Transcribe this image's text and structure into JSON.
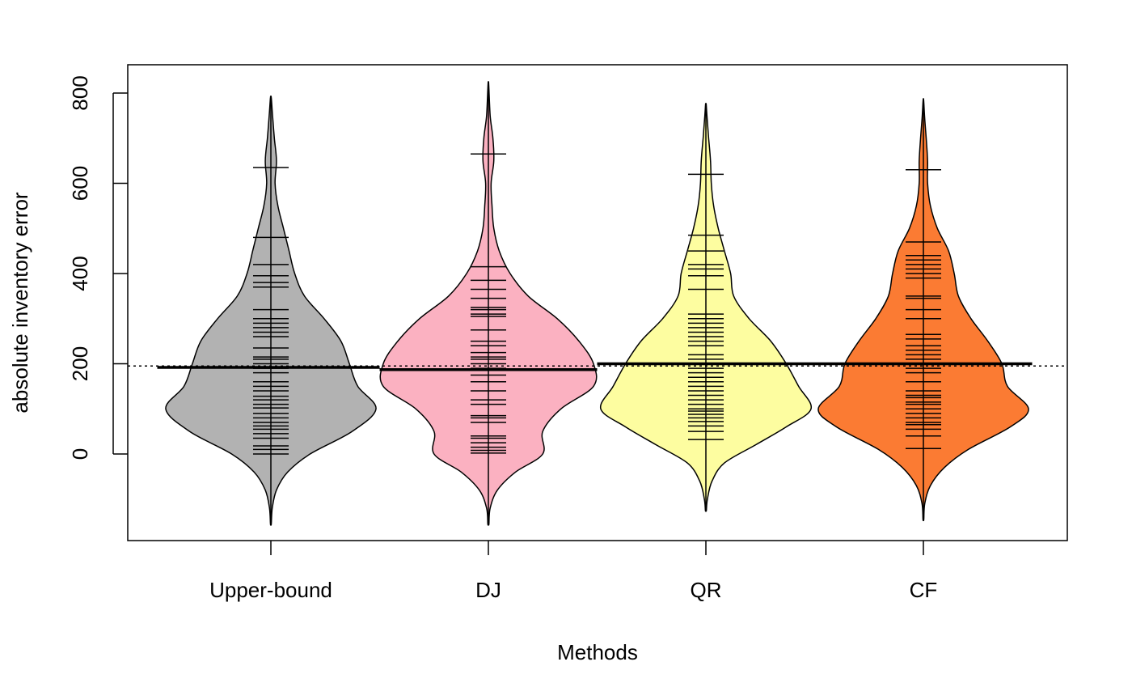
{
  "chart_data": {
    "type": "violin",
    "xlabel": "Methods",
    "ylabel": "absolute inventory error",
    "ylim": [
      -190,
      1000
    ],
    "yticks": [
      0,
      200,
      400,
      600,
      800
    ],
    "overall_mean": 195,
    "grid": false,
    "legend": "none",
    "groups": [
      {
        "name": "Upper-bound",
        "color": "#b2b2b2",
        "mean": 192,
        "range": [
          -155,
          790
        ],
        "density": [
          [
            -155,
            0.003
          ],
          [
            -120,
            0.01
          ],
          [
            -80,
            0.04
          ],
          [
            -40,
            0.12
          ],
          [
            0,
            0.28
          ],
          [
            50,
            0.58
          ],
          [
            100,
            0.75
          ],
          [
            150,
            0.62
          ],
          [
            200,
            0.56
          ],
          [
            250,
            0.5
          ],
          [
            300,
            0.38
          ],
          [
            350,
            0.24
          ],
          [
            400,
            0.17
          ],
          [
            450,
            0.13
          ],
          [
            500,
            0.09
          ],
          [
            550,
            0.05
          ],
          [
            600,
            0.03
          ],
          [
            650,
            0.04
          ],
          [
            700,
            0.025
          ],
          [
            750,
            0.012
          ],
          [
            790,
            0.003
          ]
        ],
        "points": [
          0,
          10,
          18,
          35,
          45,
          55,
          62,
          70,
          80,
          90,
          102,
          110,
          120,
          128,
          140,
          150,
          160,
          180,
          190,
          200,
          210,
          215,
          235,
          260,
          270,
          280,
          290,
          300,
          320,
          370,
          380,
          395,
          420,
          480,
          635
        ]
      },
      {
        "name": "DJ",
        "color": "#fbb1c1",
        "mean": 187,
        "range": [
          -155,
          820
        ],
        "density": [
          [
            -155,
            0.003
          ],
          [
            -120,
            0.01
          ],
          [
            -80,
            0.05
          ],
          [
            -40,
            0.15
          ],
          [
            0,
            0.3
          ],
          [
            50,
            0.3
          ],
          [
            100,
            0.4
          ],
          [
            150,
            0.58
          ],
          [
            200,
            0.58
          ],
          [
            250,
            0.5
          ],
          [
            300,
            0.38
          ],
          [
            350,
            0.22
          ],
          [
            400,
            0.12
          ],
          [
            450,
            0.06
          ],
          [
            500,
            0.03
          ],
          [
            550,
            0.02
          ],
          [
            600,
            0.015
          ],
          [
            650,
            0.03
          ],
          [
            700,
            0.025
          ],
          [
            750,
            0.01
          ],
          [
            820,
            0.002
          ]
        ],
        "points": [
          2,
          8,
          15,
          25,
          35,
          40,
          70,
          80,
          85,
          110,
          120,
          140,
          160,
          175,
          190,
          200,
          210,
          215,
          225,
          240,
          250,
          275,
          305,
          310,
          320,
          325,
          345,
          365,
          385,
          415,
          665
        ]
      },
      {
        "name": "QR",
        "color": "#fdfda0",
        "mean": 200,
        "range": [
          -125,
          775
        ],
        "density": [
          [
            -125,
            0.003
          ],
          [
            -100,
            0.01
          ],
          [
            -60,
            0.04
          ],
          [
            -20,
            0.12
          ],
          [
            20,
            0.32
          ],
          [
            60,
            0.52
          ],
          [
            100,
            0.68
          ],
          [
            150,
            0.6
          ],
          [
            200,
            0.52
          ],
          [
            250,
            0.42
          ],
          [
            300,
            0.28
          ],
          [
            350,
            0.18
          ],
          [
            400,
            0.16
          ],
          [
            450,
            0.12
          ],
          [
            500,
            0.08
          ],
          [
            550,
            0.05
          ],
          [
            600,
            0.035
          ],
          [
            650,
            0.03
          ],
          [
            700,
            0.018
          ],
          [
            750,
            0.007
          ],
          [
            775,
            0.002
          ]
        ],
        "points": [
          32,
          50,
          62,
          72,
          80,
          88,
          95,
          100,
          110,
          120,
          130,
          140,
          150,
          160,
          170,
          180,
          190,
          210,
          220,
          240,
          250,
          260,
          270,
          280,
          290,
          300,
          310,
          365,
          395,
          410,
          420,
          450,
          485,
          620
        ]
      },
      {
        "name": "CF",
        "color": "#fb7b33",
        "mean": 200,
        "range": [
          -145,
          785
        ],
        "density": [
          [
            -145,
            0.003
          ],
          [
            -110,
            0.01
          ],
          [
            -70,
            0.05
          ],
          [
            -30,
            0.15
          ],
          [
            10,
            0.32
          ],
          [
            60,
            0.62
          ],
          [
            100,
            0.75
          ],
          [
            150,
            0.6
          ],
          [
            200,
            0.56
          ],
          [
            250,
            0.46
          ],
          [
            300,
            0.34
          ],
          [
            350,
            0.25
          ],
          [
            400,
            0.22
          ],
          [
            450,
            0.18
          ],
          [
            500,
            0.1
          ],
          [
            550,
            0.05
          ],
          [
            600,
            0.03
          ],
          [
            650,
            0.03
          ],
          [
            700,
            0.02
          ],
          [
            750,
            0.008
          ],
          [
            785,
            0.002
          ]
        ],
        "points": [
          12,
          40,
          55,
          65,
          70,
          80,
          90,
          100,
          110,
          115,
          125,
          130,
          140,
          160,
          180,
          190,
          200,
          210,
          220,
          230,
          240,
          255,
          265,
          300,
          320,
          345,
          350,
          390,
          400,
          410,
          420,
          430,
          440,
          470,
          630
        ]
      }
    ]
  }
}
